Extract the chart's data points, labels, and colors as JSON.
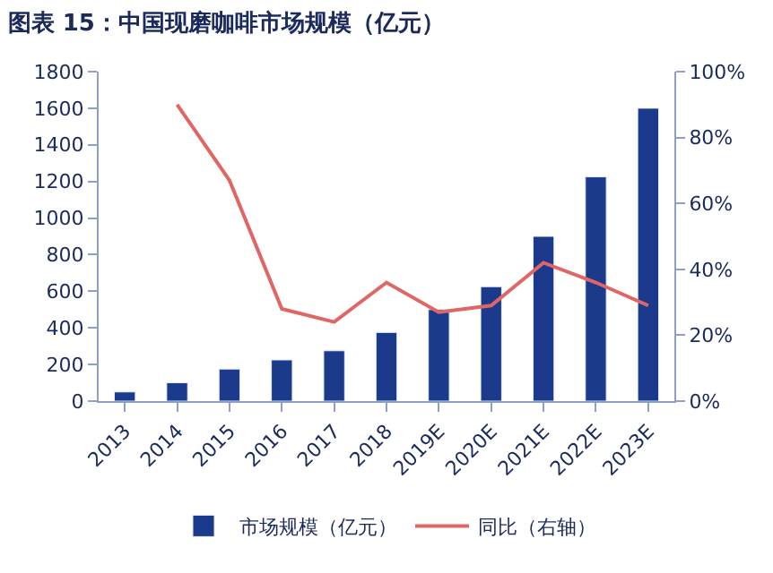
{
  "chart_data": {
    "type": "bar",
    "title": "图表 15：中国现磨咖啡市场规模（亿元）",
    "categories": [
      "2013",
      "2014",
      "2015",
      "2016",
      "2017",
      "2018",
      "2019E",
      "2020E",
      "2021E",
      "2022E",
      "2023E"
    ],
    "series": [
      {
        "name": "市场规模（亿元）",
        "color": "#1b3a8c",
        "values": [
          50,
          100,
          175,
          225,
          275,
          375,
          500,
          625,
          900,
          1225,
          1600
        ]
      },
      {
        "name": "同比（右轴）",
        "type": "line",
        "axis": "y2",
        "color": "#e06666",
        "values": [
          null,
          90,
          67,
          28,
          24,
          36,
          27,
          29,
          42,
          36,
          29
        ]
      }
    ],
    "ylim": [
      0,
      1800
    ],
    "yticks": [
      0,
      200,
      400,
      600,
      800,
      1000,
      1200,
      1400,
      1600,
      1800
    ],
    "y2lim": [
      0,
      100
    ],
    "y2ticks": [
      {
        "value": 0,
        "label": "0%"
      },
      {
        "value": 20,
        "label": "20%"
      },
      {
        "value": 40,
        "label": "40%"
      },
      {
        "value": 60,
        "label": "60%"
      },
      {
        "value": 80,
        "label": "80%"
      },
      {
        "value": 100,
        "label": "100%"
      }
    ],
    "legend": "bottom"
  }
}
